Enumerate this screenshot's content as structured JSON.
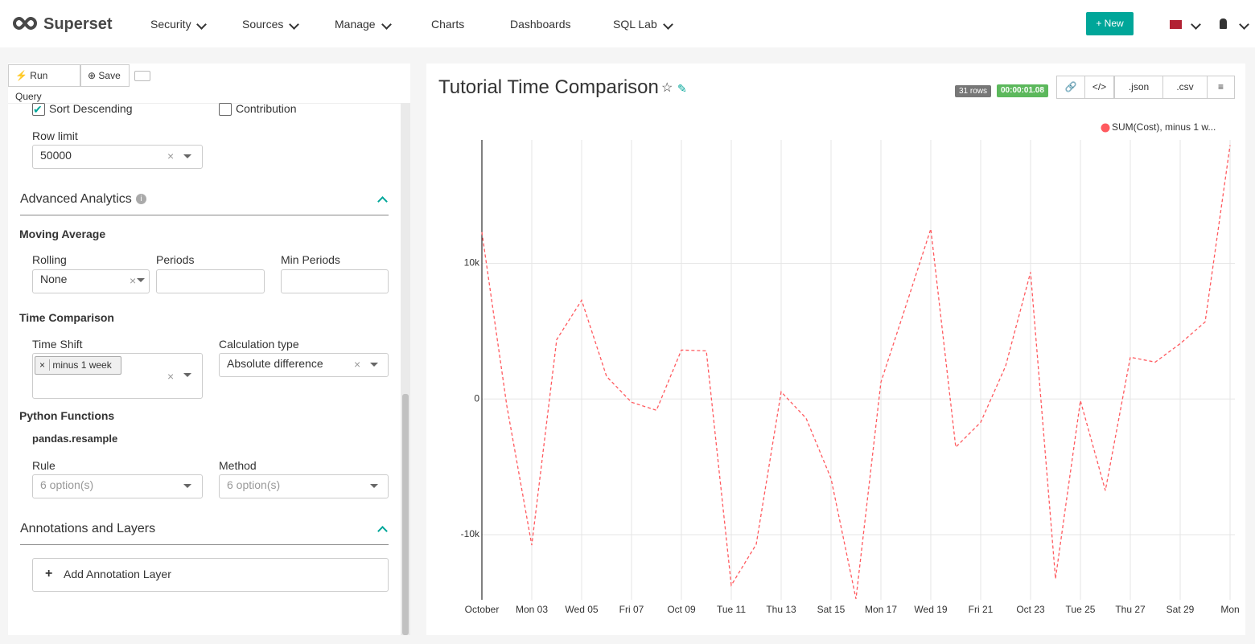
{
  "navbar": {
    "brand": "Superset",
    "menu": [
      "Security",
      "Sources",
      "Manage",
      "Charts",
      "Dashboards",
      "SQL Lab"
    ],
    "new_button": "New"
  },
  "toolbar": {
    "run_query": "Run Query",
    "save": "Save"
  },
  "controls": {
    "sort_descending": "Sort Descending",
    "contribution": "Contribution",
    "row_limit": {
      "label": "Row limit",
      "value": "50000"
    },
    "advanced_analytics": "Advanced Analytics",
    "moving_average": {
      "heading": "Moving Average",
      "rolling": {
        "label": "Rolling",
        "value": "None"
      },
      "periods": "Periods",
      "min_periods": "Min Periods"
    },
    "time_comparison": {
      "heading": "Time Comparison",
      "time_shift": {
        "label": "Time Shift",
        "tag": "minus 1 week"
      },
      "calculation_type": {
        "label": "Calculation type",
        "value": "Absolute difference"
      }
    },
    "python_functions": {
      "heading": "Python Functions",
      "subheading": "pandas.resample",
      "rule": {
        "label": "Rule",
        "placeholder": "6 option(s)"
      },
      "method": {
        "label": "Method",
        "placeholder": "6 option(s)"
      }
    },
    "annotations": {
      "heading": "Annotations and Layers",
      "add_layer": "Add Annotation Layer"
    }
  },
  "chart_header": {
    "rows": "31 rows",
    "duration": "00:00:01.08",
    "json": ".json",
    "csv": ".csv"
  },
  "chart_data": {
    "type": "line",
    "title": "Tutorial Time Comparison",
    "categories": [
      "October",
      null,
      "Mon 03",
      null,
      "Wed 05",
      null,
      "Fri 07",
      null,
      "Oct 09",
      null,
      "Tue 11",
      null,
      "Thu 13",
      null,
      "Sat 15",
      null,
      "Mon 17",
      null,
      "Wed 19",
      null,
      "Fri 21",
      null,
      "Oct 23",
      null,
      "Tue 25",
      null,
      "Thu 27",
      null,
      "Sat 29",
      null,
      "Mon"
    ],
    "series": [
      {
        "name": "SUM(Cost), minus 1 w...",
        "color": "#ff5a5f",
        "values": [
          12300,
          -500,
          -10770,
          4380,
          7280,
          1660,
          -240,
          -830,
          3610,
          3550,
          -13730,
          -10710,
          530,
          -1420,
          -5860,
          -14730,
          1240,
          6860,
          12540,
          -3550,
          -1720,
          2430,
          9350,
          -13250,
          -120,
          -6750,
          3080,
          2720,
          4080,
          5680,
          18700
        ]
      }
    ],
    "ylim": [
      -14800,
      19100
    ],
    "yticks": [
      {
        "value": -10000,
        "label": "-10k"
      },
      0,
      {
        "value": 10000,
        "label": "10k"
      }
    ],
    "grid": true,
    "legend": "top-right",
    "dashed": true
  }
}
